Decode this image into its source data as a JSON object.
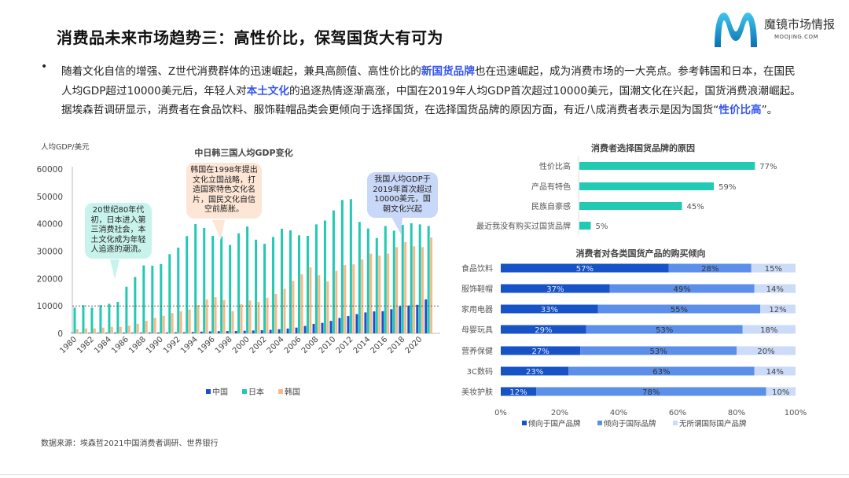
{
  "header": {
    "title": "消费品未来市场趋势三：高性价比，保驾国货大有可为",
    "logo_name": "魔镜市场情报",
    "logo_url": "MOOJING.COM"
  },
  "intro": {
    "bullet": "•",
    "lines": [
      [
        {
          "t": "随着文化自信的增强、Z世代消费群体的迅速崛起，兼具高颜值、高性价比的"
        },
        {
          "t": "新国货品牌",
          "hl": true
        },
        {
          "t": "也在迅速崛起，成为消费市场的一大亮点。参考韩国和日本，在国民"
        }
      ],
      [
        {
          "t": "人均GDP超过10000美元后，年轻人对"
        },
        {
          "t": "本土文化",
          "hl": true
        },
        {
          "t": "的追逐热情逐渐高涨，中国在2019年人均GDP首次超过10000美元，国潮文化在兴起，国货消费浪潮崛起。"
        }
      ],
      [
        {
          "t": "据埃森哲调研显示，消费者在食品饮料、服饰鞋帽品类会更倾向于选择国货，在选择国货品牌的原因方面，有近八成消费者表示是因为国货“"
        },
        {
          "t": "性价比高",
          "hl": true
        },
        {
          "t": "”。"
        }
      ]
    ],
    "highlight_color": "#3555f0"
  },
  "callouts": {
    "japan": "20世纪80年代初，日本进入第三消费社会，本土文化成为年轻人追逐的潮流。",
    "korea": "韩国在1998年提出文化立国战略，打造国家特色文化名片，国民文化自信空前膨胀。",
    "china": "我国人均GDP于2019年首次超过10000美元，国朝文化兴起"
  },
  "chart_data": [
    {
      "type": "bar",
      "title": "中日韩三国人均GDP变化",
      "ylabel": "人均GDP/美元",
      "ylim": [
        0,
        60000
      ],
      "yticks": [
        0,
        10000,
        20000,
        30000,
        40000,
        50000,
        60000
      ],
      "reference_line": 10000,
      "legend_position": "bottom",
      "categories": [
        1980,
        1981,
        1982,
        1983,
        1984,
        1985,
        1986,
        1987,
        1988,
        1989,
        1990,
        1991,
        1992,
        1993,
        1994,
        1995,
        1996,
        1997,
        1998,
        1999,
        2000,
        2001,
        2002,
        2003,
        2004,
        2005,
        2006,
        2007,
        2008,
        2009,
        2010,
        2011,
        2012,
        2013,
        2014,
        2015,
        2016,
        2017,
        2018,
        2019,
        2020,
        2021
      ],
      "xticks": [
        "1980",
        "1982",
        "1984",
        "1986",
        "1988",
        "1990",
        "1992",
        "1994",
        "1996",
        "1998",
        "2000",
        "2002",
        "2004",
        "2006",
        "2008",
        "2010",
        "2012",
        "2014",
        "2016",
        "2018",
        "2020"
      ],
      "series": [
        {
          "name": "中国",
          "color": "#1c4fc9",
          "values": [
            195,
            197,
            203,
            225,
            250,
            294,
            282,
            252,
            284,
            311,
            318,
            333,
            366,
            377,
            473,
            610,
            709,
            782,
            829,
            873,
            959,
            1053,
            1149,
            1289,
            1509,
            1753,
            2099,
            2694,
            3468,
            3832,
            4550,
            5614,
            6301,
            7020,
            7636,
            8016,
            8094,
            8817,
            9905,
            10144,
            10409,
            12400
          ]
        },
        {
          "name": "日本",
          "color": "#22c9b3",
          "values": [
            9400,
            10300,
            9400,
            10300,
            10800,
            11500,
            17000,
            20600,
            24800,
            24700,
            25300,
            28900,
            31300,
            35500,
            39900,
            38500,
            35600,
            35400,
            32300,
            36500,
            39000,
            34200,
            32700,
            35200,
            38200,
            37600,
            35800,
            35600,
            39800,
            41200,
            44900,
            48700,
            49000,
            40700,
            38300,
            34800,
            39200,
            37500,
            39600,
            40200,
            39800,
            39200
          ]
        },
        {
          "name": "韩国",
          "color": "#f8b888",
          "values": [
            1500,
            1800,
            1800,
            2100,
            2400,
            2400,
            2800,
            3500,
            4600,
            5700,
            6400,
            7400,
            8100,
            8700,
            10300,
            12400,
            13200,
            12200,
            8100,
            10600,
            12000,
            11500,
            13000,
            14400,
            16300,
            19200,
            21600,
            24100,
            21200,
            19000,
            22800,
            24900,
            25200,
            27000,
            29100,
            28400,
            29100,
            31500,
            33300,
            31800,
            31500,
            35000
          ]
        }
      ]
    },
    {
      "type": "bar",
      "orientation": "horizontal",
      "title": "消费者选择国货品牌的原因",
      "categories": [
        "性价比高",
        "产品有特色",
        "民族自豪感",
        "最近我没有购买过国货品牌"
      ],
      "values": [
        77,
        59,
        45,
        5
      ],
      "labels": [
        "77%",
        "59%",
        "45%",
        "5%"
      ],
      "color": "#22c9b3"
    },
    {
      "type": "bar",
      "orientation": "horizontal",
      "stacked": true,
      "title": "消费者对各类国货产品的购买倾向",
      "categories": [
        "食品饮料",
        "服饰鞋帽",
        "家用电器",
        "母婴玩具",
        "营养保健",
        "3C数码",
        "美妆护肤"
      ],
      "xticks": [
        "0%",
        "20%",
        "40%",
        "60%",
        "80%",
        "100%"
      ],
      "legend_position": "bottom",
      "series": [
        {
          "name": "倾向于国产品牌",
          "color": "#1753c6",
          "values": [
            57,
            37,
            33,
            29,
            27,
            23,
            12
          ]
        },
        {
          "name": "倾向于国际品牌",
          "color": "#5b8fe9",
          "values": [
            28,
            49,
            55,
            53,
            53,
            63,
            78
          ]
        },
        {
          "name": "无所谓国际国产品牌",
          "color": "#cbdbf8",
          "values": [
            15,
            14,
            12,
            18,
            20,
            14,
            10
          ]
        }
      ]
    }
  ],
  "source": "数据来源：埃森哲2021中国消费者调研、世界银行"
}
